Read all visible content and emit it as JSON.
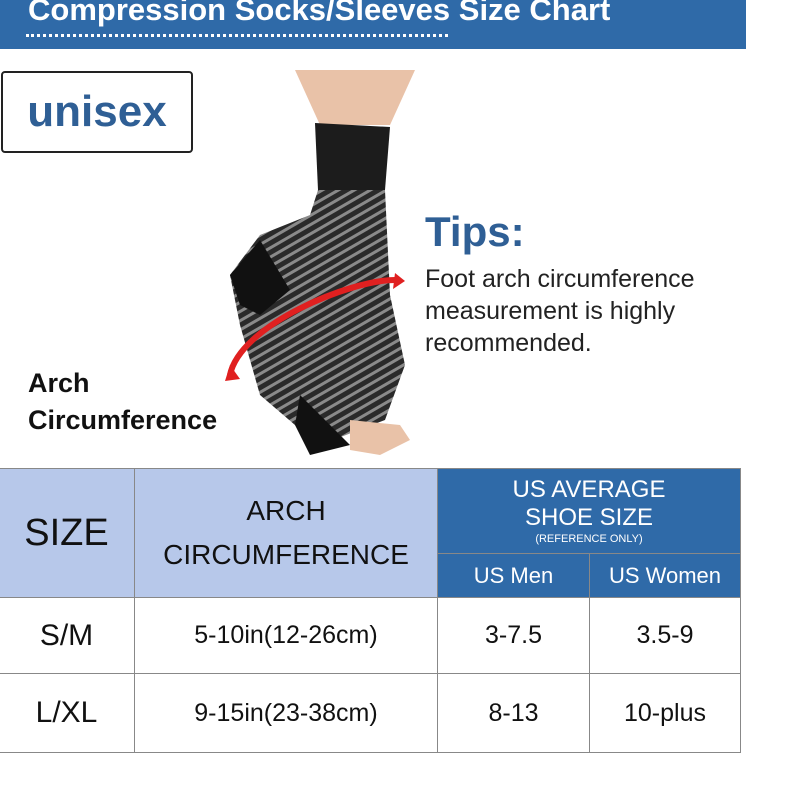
{
  "title": "Compression Socks/Sleeves Size Chart",
  "badge": "unisex",
  "tips": {
    "title": "Tips:",
    "text": "Foot arch circumference measurement is highly recommended."
  },
  "arch_label": {
    "line1": "Arch",
    "line2": "Circumference"
  },
  "colors": {
    "brand_blue": "#2f6aa8",
    "header_light": "#b7c8ea",
    "arrow_red": "#e02020"
  },
  "table": {
    "headers": {
      "size": "SIZE",
      "arch_line1": "ARCH",
      "arch_line2": "CIRCUMFERENCE",
      "shoe_line1": "US AVERAGE",
      "shoe_line2": "SHOE SIZE",
      "shoe_note": "(REFERENCE ONLY)",
      "men": "US Men",
      "women": "US Women"
    },
    "rows": [
      {
        "size": "S/M",
        "arch": "5-10in(12-26cm)",
        "men": "3-7.5",
        "women": "3.5-9"
      },
      {
        "size": "L/XL",
        "arch": "9-15in(23-38cm)",
        "men": "8-13",
        "women": "10-plus"
      }
    ]
  }
}
